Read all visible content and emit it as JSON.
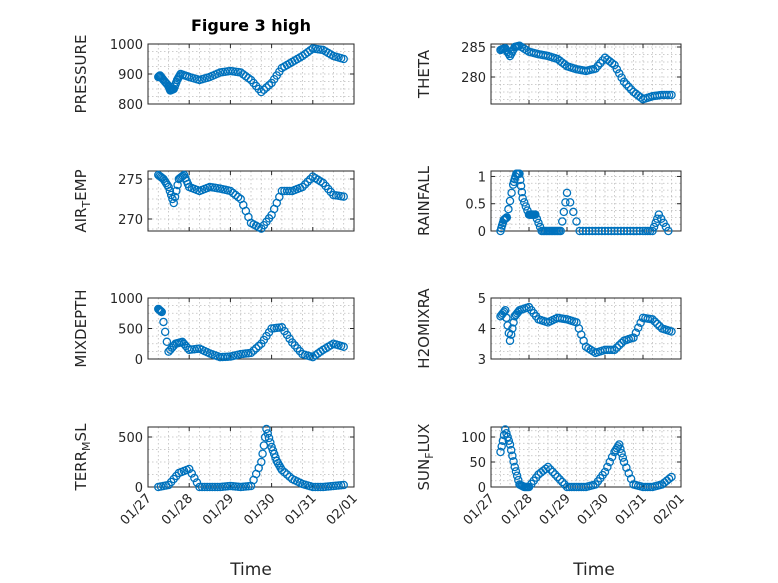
{
  "figure_title": "Figure 3 high",
  "x_axis_label": "Time",
  "marker_color": "#0072BD",
  "chart_data": [
    {
      "type": "scatter",
      "ylabel": "PRESSURE",
      "ylim": [
        800,
        1000
      ],
      "yticks": [
        800,
        900,
        1000
      ],
      "xlim": [
        "01/27",
        "02/01"
      ],
      "xticks": [
        "01/27",
        "01/28",
        "01/29",
        "01/30",
        "01/31",
        "02/01"
      ],
      "x": [
        "01/27 06:00",
        "01/27 07:00",
        "01/27 09:00",
        "01/27 12:00",
        "01/27 13:00",
        "01/27 15:00",
        "01/27 17:00",
        "01/27 19:00",
        "01/28 00:00",
        "01/28 06:00",
        "01/28 12:00",
        "01/28 18:00",
        "01/29 00:00",
        "01/29 06:00",
        "01/29 12:00",
        "01/29 18:00",
        "01/30 00:00",
        "01/30 06:00",
        "01/30 12:00",
        "01/30 18:00",
        "01/31 00:00",
        "01/31 06:00",
        "01/31 12:00",
        "01/31 18:00"
      ],
      "y": [
        890,
        895,
        880,
        860,
        845,
        850,
        880,
        900,
        890,
        880,
        890,
        905,
        910,
        905,
        880,
        840,
        870,
        920,
        940,
        960,
        985,
        980,
        960,
        950
      ]
    },
    {
      "type": "scatter",
      "ylabel": "THETA",
      "ylim": [
        275.5,
        285.5
      ],
      "yticks": [
        280,
        285
      ],
      "xlim": [
        "01/27",
        "02/01"
      ],
      "xticks": [
        "01/27",
        "01/28",
        "01/29",
        "01/30",
        "01/31",
        "02/01"
      ],
      "x": [
        "01/27 06:00",
        "01/27 09:00",
        "01/27 12:00",
        "01/27 15:00",
        "01/27 18:00",
        "01/28 00:00",
        "01/28 06:00",
        "01/28 12:00",
        "01/28 18:00",
        "01/29 00:00",
        "01/29 06:00",
        "01/29 12:00",
        "01/29 18:00",
        "01/30 00:00",
        "01/30 06:00",
        "01/30 12:00",
        "01/30 18:00",
        "01/31 00:00",
        "01/31 06:00",
        "01/31 12:00",
        "01/31 18:00"
      ],
      "y": [
        284.5,
        284.8,
        283.5,
        285,
        285.2,
        284.2,
        283.8,
        283.5,
        283,
        281.8,
        281.3,
        281,
        281.4,
        283.2,
        282,
        279.2,
        277.5,
        276.3,
        276.8,
        277,
        277
      ]
    },
    {
      "type": "scatter",
      "ylabel": "AIR_TEMP",
      "ylim": [
        268.5,
        276
      ],
      "yticks": [
        270,
        275
      ],
      "xlim": [
        "01/27",
        "02/01"
      ],
      "xticks": [
        "01/27",
        "01/28",
        "01/29",
        "01/30",
        "01/31",
        "02/01"
      ],
      "x": [
        "01/27 06:00",
        "01/27 09:00",
        "01/27 12:00",
        "01/27 15:00",
        "01/27 18:00",
        "01/27 21:00",
        "01/28 00:00",
        "01/28 06:00",
        "01/28 12:00",
        "01/28 18:00",
        "01/29 00:00",
        "01/29 06:00",
        "01/29 12:00",
        "01/29 18:00",
        "01/30 00:00",
        "01/30 06:00",
        "01/30 12:00",
        "01/30 18:00",
        "01/31 00:00",
        "01/31 06:00",
        "01/31 12:00",
        "01/31 18:00"
      ],
      "y": [
        275.5,
        275,
        274,
        272,
        275,
        275.5,
        274,
        273.5,
        274,
        273.8,
        273.5,
        272.5,
        269.5,
        268.8,
        270.5,
        273.5,
        273.5,
        274,
        275.3,
        274.5,
        273,
        272.8
      ]
    },
    {
      "type": "scatter",
      "ylabel": "RAINFALL",
      "ylim": [
        0,
        1.1
      ],
      "yticks": [
        0,
        0.5,
        1
      ],
      "xlim": [
        "01/27",
        "02/01"
      ],
      "xticks": [
        "01/27",
        "01/28",
        "01/29",
        "01/30",
        "01/31",
        "02/01"
      ],
      "x": [
        "01/27 06:00",
        "01/27 08:00",
        "01/27 10:00",
        "01/27 14:00",
        "01/27 16:00",
        "01/27 18:00",
        "01/27 20:00",
        "01/28 00:00",
        "01/28 02:00",
        "01/28 04:00",
        "01/28 08:00",
        "01/28 12:00",
        "01/28 16:00",
        "01/28 20:00",
        "01/29 00:00",
        "01/29 08:00",
        "01/29 16:00",
        "01/30 00:00",
        "01/30 08:00",
        "01/30 16:00",
        "01/31 00:00",
        "01/31 06:00",
        "01/31 10:00",
        "01/31 16:00"
      ],
      "y": [
        0,
        0.2,
        0.25,
        0.85,
        1.05,
        1.05,
        0.6,
        0.3,
        0.3,
        0.3,
        0,
        0,
        0,
        0,
        0.7,
        0,
        0,
        0,
        0,
        0,
        0,
        0,
        0.3,
        0
      ]
    },
    {
      "type": "scatter",
      "ylabel": "MIXDEPTH",
      "ylim": [
        0,
        1000
      ],
      "yticks": [
        0,
        500,
        1000
      ],
      "xlim": [
        "01/27",
        "02/01"
      ],
      "xticks": [
        "01/27",
        "01/28",
        "01/29",
        "01/30",
        "01/31",
        "02/01"
      ],
      "x": [
        "01/27 06:00",
        "01/27 08:00",
        "01/27 12:00",
        "01/27 16:00",
        "01/27 20:00",
        "01/28 00:00",
        "01/28 06:00",
        "01/28 12:00",
        "01/28 18:00",
        "01/29 00:00",
        "01/29 06:00",
        "01/29 12:00",
        "01/29 18:00",
        "01/30 00:00",
        "01/30 06:00",
        "01/30 12:00",
        "01/30 18:00",
        "01/31 00:00",
        "01/31 06:00",
        "01/31 12:00",
        "01/31 18:00"
      ],
      "y": [
        820,
        770,
        120,
        250,
        280,
        150,
        170,
        90,
        30,
        40,
        80,
        100,
        250,
        500,
        520,
        270,
        80,
        30,
        150,
        250,
        200
      ]
    },
    {
      "type": "scatter",
      "ylabel": "H2OMIXRA",
      "ylim": [
        3,
        5
      ],
      "yticks": [
        3,
        4,
        5
      ],
      "xlim": [
        "01/27",
        "02/01"
      ],
      "xticks": [
        "01/27",
        "01/28",
        "01/29",
        "01/30",
        "01/31",
        "02/01"
      ],
      "x": [
        "01/27 06:00",
        "01/27 09:00",
        "01/27 12:00",
        "01/27 15:00",
        "01/27 18:00",
        "01/28 00:00",
        "01/28 06:00",
        "01/28 12:00",
        "01/28 18:00",
        "01/29 00:00",
        "01/29 06:00",
        "01/29 12:00",
        "01/29 18:00",
        "01/30 00:00",
        "01/30 06:00",
        "01/30 12:00",
        "01/30 18:00",
        "01/31 00:00",
        "01/31 06:00",
        "01/31 12:00",
        "01/31 18:00"
      ],
      "y": [
        4.4,
        4.6,
        3.6,
        4.4,
        4.6,
        4.7,
        4.3,
        4.2,
        4.35,
        4.3,
        4.2,
        3.4,
        3.2,
        3.3,
        3.3,
        3.6,
        3.7,
        4.35,
        4.3,
        4,
        3.9
      ]
    },
    {
      "type": "scatter",
      "ylabel": "TERR_MSL",
      "ylim": [
        0,
        600
      ],
      "yticks": [
        0,
        500
      ],
      "xlim": [
        "01/27",
        "02/01"
      ],
      "xticks": [
        "01/27",
        "01/28",
        "01/29",
        "01/30",
        "01/31",
        "02/01"
      ],
      "x": [
        "01/27 06:00",
        "01/27 12:00",
        "01/27 18:00",
        "01/28 00:00",
        "01/28 06:00",
        "01/28 12:00",
        "01/28 18:00",
        "01/29 00:00",
        "01/29 06:00",
        "01/29 12:00",
        "01/29 18:00",
        "01/29 21:00",
        "01/30 00:00",
        "01/30 03:00",
        "01/30 06:00",
        "01/30 12:00",
        "01/30 18:00",
        "01/31 00:00",
        "01/31 06:00",
        "01/31 12:00",
        "01/31 18:00"
      ],
      "y": [
        0,
        20,
        140,
        180,
        0,
        0,
        0,
        10,
        0,
        10,
        250,
        580,
        400,
        260,
        170,
        80,
        30,
        0,
        0,
        10,
        20
      ]
    },
    {
      "type": "scatter",
      "ylabel": "SUN_FLUX",
      "ylim": [
        0,
        120
      ],
      "yticks": [
        0,
        50,
        100
      ],
      "xlim": [
        "01/27",
        "02/01"
      ],
      "xticks": [
        "01/27",
        "01/28",
        "01/29",
        "01/30",
        "01/31",
        "02/01"
      ],
      "x": [
        "01/27 06:00",
        "01/27 09:00",
        "01/27 12:00",
        "01/27 15:00",
        "01/27 18:00",
        "01/27 21:00",
        "01/28 00:00",
        "01/28 06:00",
        "01/28 12:00",
        "01/28 18:00",
        "01/29 00:00",
        "01/29 06:00",
        "01/29 12:00",
        "01/29 18:00",
        "01/30 00:00",
        "01/30 06:00",
        "01/30 09:00",
        "01/30 12:00",
        "01/30 18:00",
        "01/31 00:00",
        "01/31 06:00",
        "01/31 12:00",
        "01/31 18:00"
      ],
      "y": [
        70,
        115,
        85,
        40,
        5,
        0,
        0,
        25,
        40,
        20,
        0,
        0,
        0,
        5,
        30,
        70,
        85,
        50,
        5,
        0,
        0,
        5,
        20
      ]
    }
  ]
}
